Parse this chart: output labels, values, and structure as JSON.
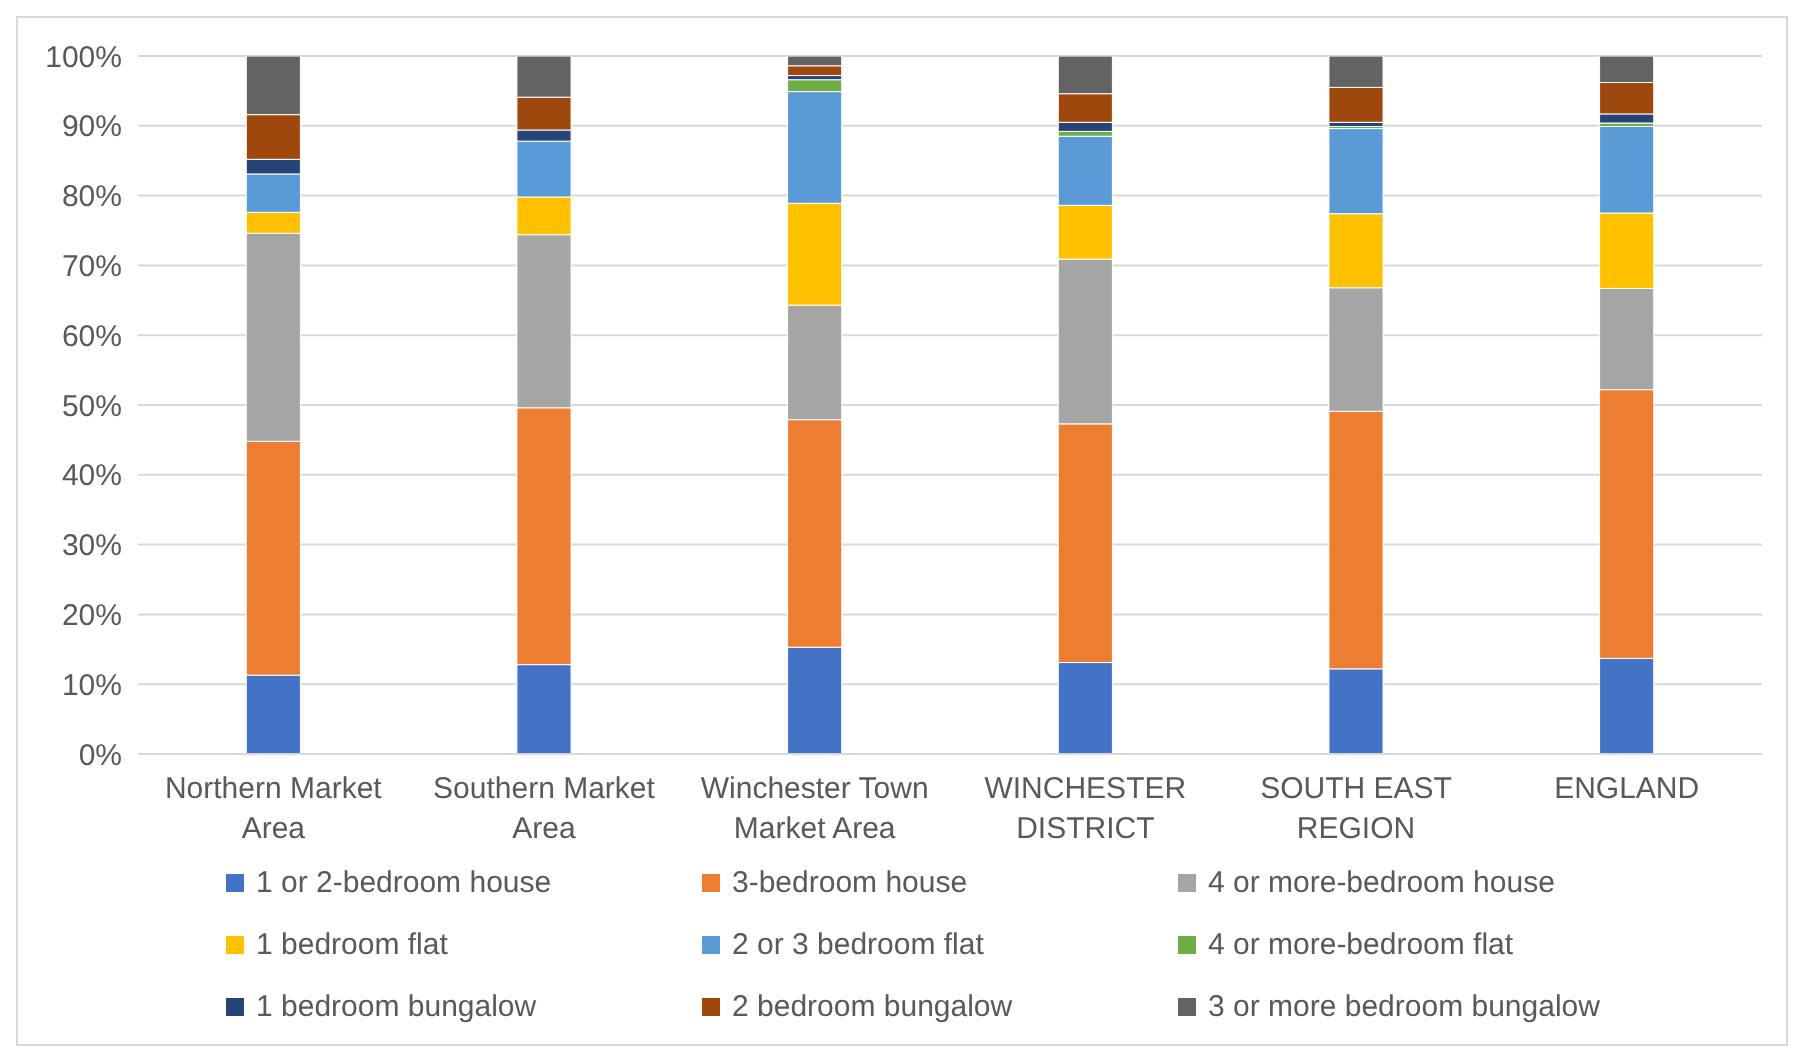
{
  "chart_data": {
    "type": "bar",
    "stacked": true,
    "categories": [
      "Northern Market Area",
      "Southern Market Area",
      "Winchester Town Market Area",
      "WINCHESTER DISTRICT",
      "SOUTH EAST REGION",
      "ENGLAND"
    ],
    "series": [
      {
        "name": "1 or 2-bedroom house",
        "color": "#4472c4",
        "values": [
          11.3,
          12.8,
          15.3,
          13.1,
          12.2,
          13.7
        ]
      },
      {
        "name": "3-bedroom house",
        "color": "#ed7d31",
        "values": [
          33.5,
          36.8,
          32.6,
          34.2,
          36.9,
          38.5
        ]
      },
      {
        "name": "4 or more-bedroom house",
        "color": "#a5a5a5",
        "values": [
          29.8,
          24.8,
          16.4,
          23.6,
          17.7,
          14.5
        ]
      },
      {
        "name": "1 bedroom flat",
        "color": "#ffc000",
        "values": [
          3.0,
          5.4,
          14.6,
          7.7,
          10.6,
          10.8
        ]
      },
      {
        "name": "2 or 3 bedroom flat",
        "color": "#5b9bd5",
        "values": [
          5.5,
          8.0,
          16.0,
          9.9,
          12.2,
          12.4
        ]
      },
      {
        "name": "4 or more-bedroom flat",
        "color": "#70ad47",
        "values": [
          0,
          0,
          1.7,
          0.7,
          0.3,
          0.5
        ]
      },
      {
        "name": "1 bedroom bungalow",
        "color": "#264478",
        "values": [
          2.1,
          1.6,
          0.6,
          1.3,
          0.6,
          1.3
        ]
      },
      {
        "name": "2 bedroom bungalow",
        "color": "#9e480e",
        "values": [
          6.4,
          4.7,
          1.4,
          4.1,
          5.0,
          4.5
        ]
      },
      {
        "name": "3 or more bedroom bungalow",
        "color": "#636363",
        "values": [
          8.4,
          5.9,
          1.4,
          5.4,
          4.5,
          3.8
        ]
      }
    ],
    "ylim": [
      0,
      100
    ],
    "yticks": [
      {
        "value": 0,
        "label": "0%"
      },
      {
        "value": 10,
        "label": "10%"
      },
      {
        "value": 20,
        "label": "20%"
      },
      {
        "value": 30,
        "label": "30%"
      },
      {
        "value": 40,
        "label": "40%"
      },
      {
        "value": 50,
        "label": "50%"
      },
      {
        "value": 60,
        "label": "60%"
      },
      {
        "value": 70,
        "label": "70%"
      },
      {
        "value": 80,
        "label": "80%"
      },
      {
        "value": 90,
        "label": "90%"
      },
      {
        "value": 100,
        "label": "100%"
      }
    ],
    "grid": "y",
    "legend": "bottom"
  }
}
